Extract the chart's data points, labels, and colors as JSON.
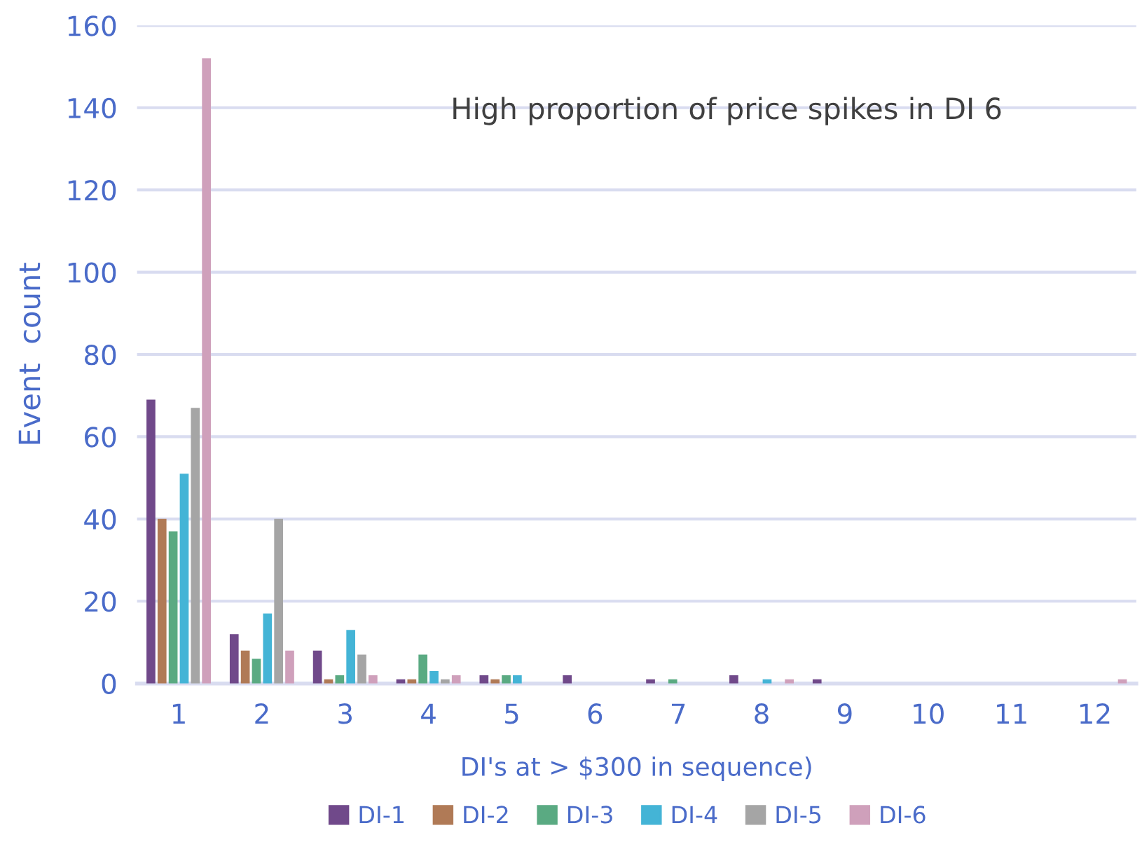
{
  "chart_data": {
    "type": "bar",
    "categories": [
      "1",
      "2",
      "3",
      "4",
      "5",
      "6",
      "7",
      "8",
      "9",
      "10",
      "11",
      "12"
    ],
    "series": [
      {
        "name": "DI-1",
        "color": "#70498a",
        "values": [
          69,
          12,
          8,
          1,
          2,
          2,
          1,
          2,
          1,
          null,
          null,
          null
        ]
      },
      {
        "name": "DI-2",
        "color": "#b07a56",
        "values": [
          40,
          8,
          1,
          1,
          1,
          null,
          null,
          null,
          null,
          null,
          null,
          null
        ]
      },
      {
        "name": "DI-3",
        "color": "#5aaa82",
        "values": [
          37,
          6,
          2,
          7,
          2,
          null,
          1,
          null,
          null,
          null,
          null,
          null
        ]
      },
      {
        "name": "DI-4",
        "color": "#44b4d6",
        "values": [
          51,
          17,
          13,
          3,
          2,
          null,
          null,
          1,
          null,
          null,
          null,
          null
        ]
      },
      {
        "name": "DI-5",
        "color": "#a5a5a5",
        "values": [
          67,
          40,
          7,
          1,
          null,
          null,
          null,
          null,
          null,
          null,
          null,
          null
        ]
      },
      {
        "name": "DI-6",
        "color": "#cfa0bb",
        "values": [
          152,
          8,
          2,
          2,
          null,
          null,
          null,
          1,
          null,
          null,
          null,
          1
        ]
      }
    ],
    "xlabel": "DI's at > $300 in sequence)",
    "ylabel": "Event  count",
    "ylim": [
      0,
      160
    ],
    "yticks": [
      0,
      20,
      40,
      60,
      80,
      100,
      120,
      140,
      160
    ],
    "grid": "y",
    "legend": "bottom",
    "annotations": [
      "High proportion of price spikes in DI 6"
    ]
  }
}
